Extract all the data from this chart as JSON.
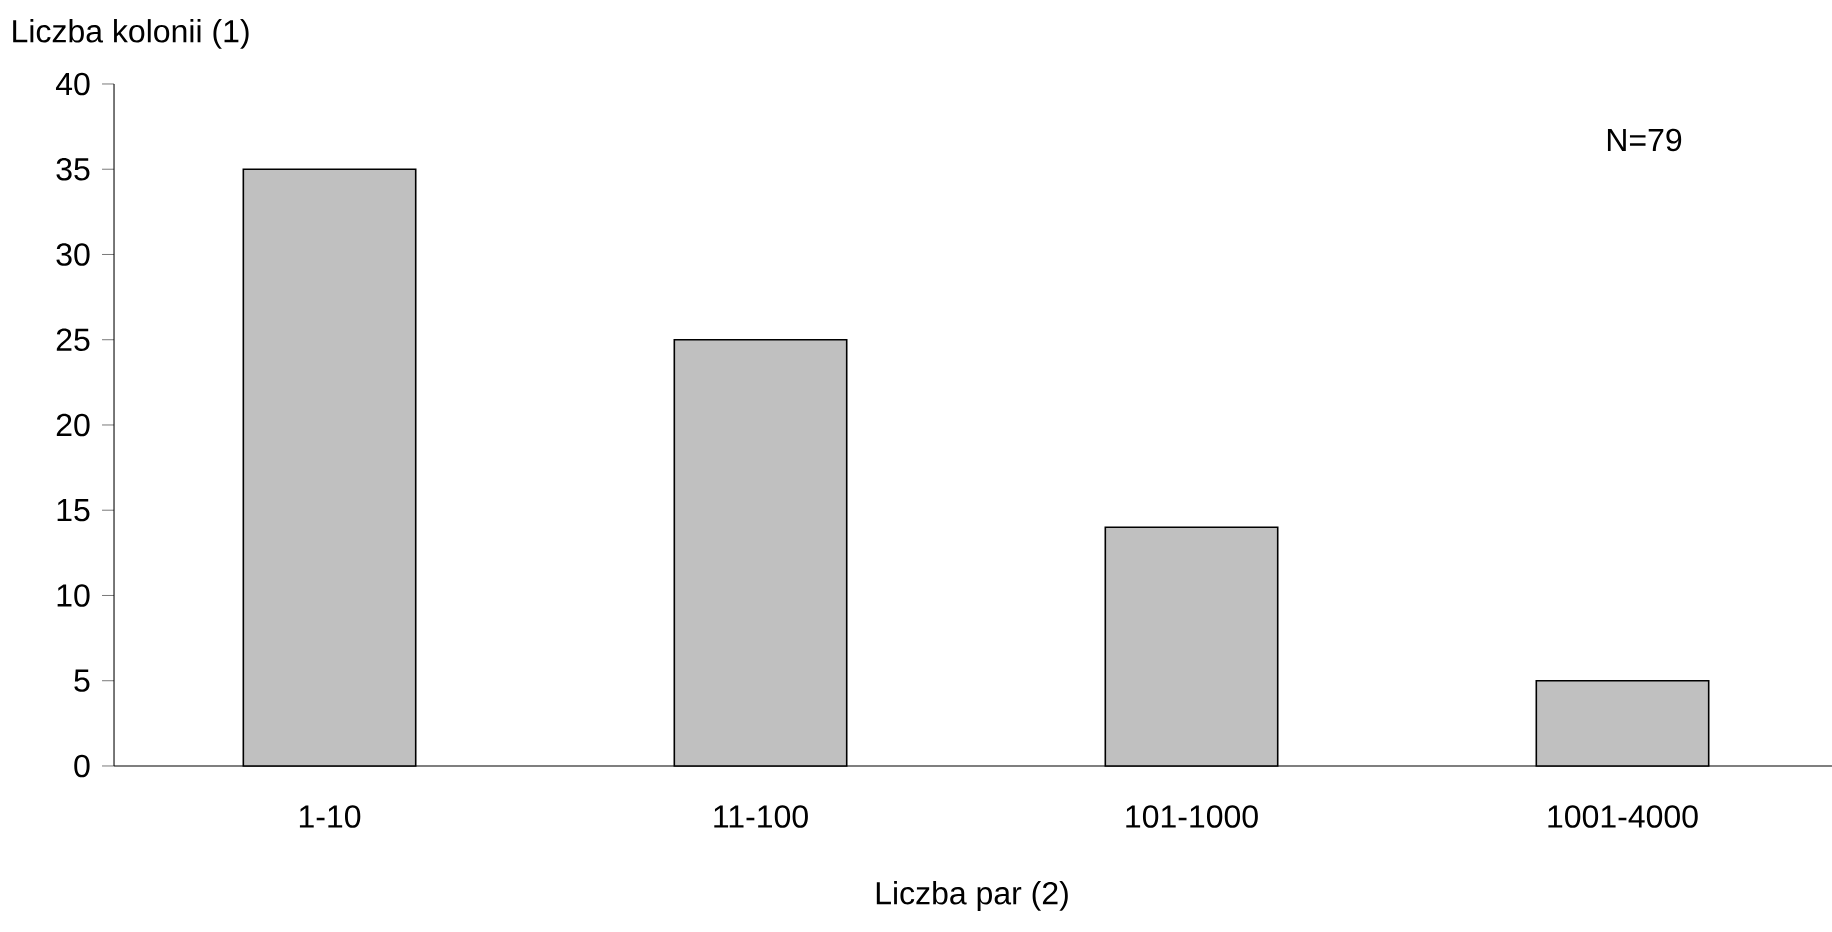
{
  "chart_data": {
    "type": "bar",
    "ylabel": "Liczba kolonii (1)",
    "xlabel": "Liczba par (2)",
    "categories": [
      "1-10",
      "11-100",
      "101-1000",
      "1001-4000"
    ],
    "values": [
      35,
      25,
      14,
      5
    ],
    "color": "#c0c0c0",
    "ylim": [
      0,
      40
    ],
    "yticks": [
      0,
      5,
      10,
      15,
      20,
      25,
      30,
      35,
      40
    ],
    "annotations": [
      "N=79"
    ]
  }
}
